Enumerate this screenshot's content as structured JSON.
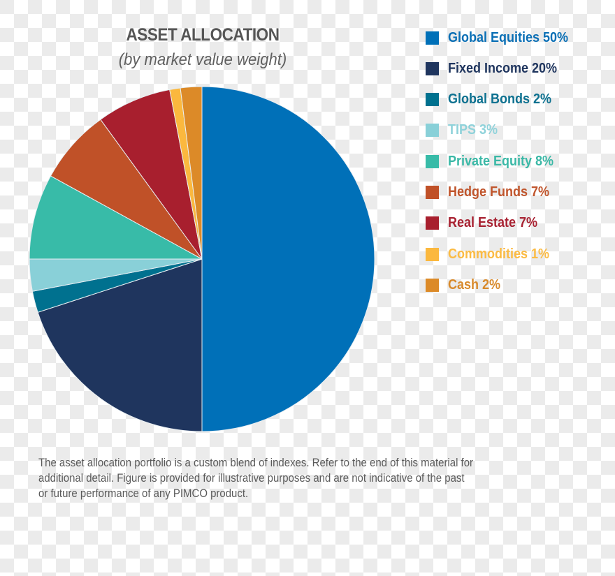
{
  "chart_data": {
    "type": "pie",
    "title": "ASSET ALLOCATION",
    "subtitle": "(by market value weight)",
    "categories": [
      "Global Equities",
      "Fixed Income",
      "Global Bonds",
      "TIPS",
      "Private Equity",
      "Hedge Funds",
      "Real Estate",
      "Commodities",
      "Cash"
    ],
    "values": [
      50,
      20,
      2,
      3,
      8,
      7,
      7,
      1,
      2
    ],
    "unit": "%",
    "colors": [
      "#0070b8",
      "#1f355e",
      "#00718f",
      "#89d0d8",
      "#38bba8",
      "#c05128",
      "#a81f2e",
      "#fbb83e",
      "#dc8a28"
    ],
    "start_angle": "12 o'clock",
    "direction": "clockwise",
    "legend_position": "right"
  },
  "header": {
    "title": "ASSET ALLOCATION",
    "subtitle": "(by market value weight)"
  },
  "legend": {
    "items": [
      {
        "label": "Global Equities 50%",
        "color": "#0070b8",
        "text_color": "#0a6fb5"
      },
      {
        "label": "Fixed Income 20%",
        "color": "#1f355e",
        "text_color": "#1f355e"
      },
      {
        "label": "Global Bonds 2%",
        "color": "#00718f",
        "text_color": "#0d7190"
      },
      {
        "label": "TIPS 3%",
        "color": "#89d0d8",
        "text_color": "#8fd2da"
      },
      {
        "label": "Private Equity 8%",
        "color": "#38bba8",
        "text_color": "#3ab8a6"
      },
      {
        "label": "Hedge Funds 7%",
        "color": "#c05128",
        "text_color": "#c0552c"
      },
      {
        "label": "Real Estate 7%",
        "color": "#a81f2e",
        "text_color": "#a82232"
      },
      {
        "label": "Commodities 1%",
        "color": "#fbb83e",
        "text_color": "#fbbb44"
      },
      {
        "label": "Cash 2%",
        "color": "#dc8a28",
        "text_color": "#d88a2c"
      }
    ]
  },
  "footnote": {
    "lines": [
      "The asset allocation portfolio is a custom blend of indexes. Refer to the end of this material for",
      "additional detail. Figure is provided for illustrative purposes and are not indicative of the past",
      "or future performance of any PIMCO product."
    ]
  }
}
